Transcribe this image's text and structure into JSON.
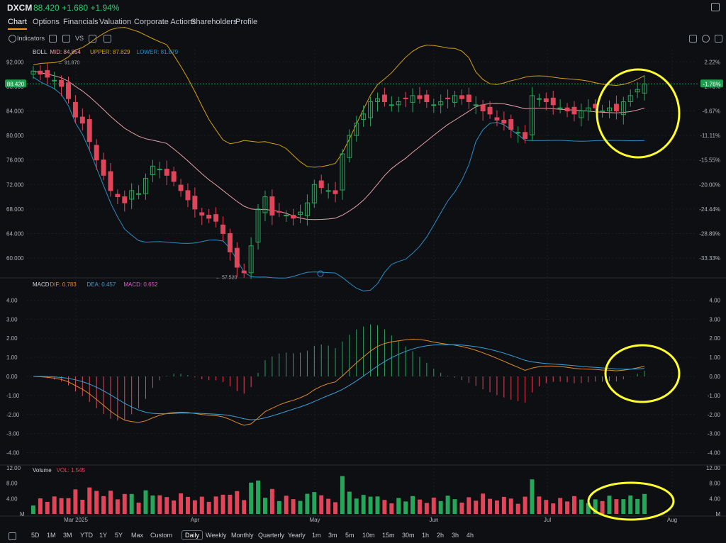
{
  "header": {
    "ticker": "DXCM",
    "price": "88.420",
    "change": "+1.680",
    "change_pct": "+1.94%"
  },
  "tabs": [
    "Chart",
    "Options",
    "Financials",
    "Valuation",
    "Corporate Actions",
    "Shareholders",
    "Profile"
  ],
  "toolbar": {
    "indicators_label": "Indicators"
  },
  "boll": {
    "label": "BOLL",
    "mid": "MID: 84.854",
    "upper": "UPPER: 87.829",
    "lower": "LOWER: 81.879"
  },
  "macd": {
    "label": "MACD",
    "dif": "DIF: 0.783",
    "dea": "DEA: 0.457",
    "macd": "MACD: 0.652"
  },
  "volume": {
    "label": "Volume",
    "vol": "VOL: 1.545"
  },
  "price_axis": {
    "left": [
      "92.000",
      "88.000",
      "84.000",
      "80.000",
      "76.000",
      "72.000",
      "68.000",
      "64.000",
      "60.000"
    ],
    "right": [
      "2.22%",
      "-1.76%",
      "-6.67%",
      "-11.11%",
      "-15.55%",
      "-20.00%",
      "-24.44%",
      "-28.89%",
      "-33.33%"
    ]
  },
  "price_tags": {
    "current": "88.420",
    "current_pct": "-1.76%",
    "high": "91.870",
    "low": "57.520"
  },
  "macd_axis": [
    "4.00",
    "3.00",
    "2.00",
    "1.00",
    "0.00",
    "-1.00",
    "-2.00",
    "-3.00",
    "-4.00"
  ],
  "vol_axis": [
    "12.00",
    "8.00",
    "4.00",
    "M"
  ],
  "x_axis": [
    "Mar 2025",
    "Apr",
    "May",
    "Jun",
    "Jul",
    "Aug"
  ],
  "bottom": {
    "ranges": [
      "5D",
      "1M",
      "3M",
      "YTD",
      "1Y",
      "5Y",
      "Max",
      "Custom"
    ],
    "periods": [
      "Daily",
      "Weekly",
      "Monthly",
      "Quarterly",
      "Yearly",
      "1m",
      "3m",
      "5m",
      "10m",
      "15m",
      "30m",
      "1h",
      "2h",
      "3h",
      "4h"
    ],
    "active": "Daily"
  },
  "colors": {
    "up": "#26a65b",
    "down": "#e0455a",
    "mid": "#e8a0a8",
    "upper": "#d4a017",
    "lower": "#2a8fc7",
    "dif": "#e08a2a",
    "dea": "#3aa0d8",
    "highlight": "#ffff2e"
  },
  "chart_data": {
    "type": "candlestick",
    "series": "DXCM daily",
    "ohlc_close": [
      90.5,
      90.0,
      89.5,
      89.0,
      88.0,
      86.0,
      83.0,
      82.0,
      79.0,
      76.0,
      73.5,
      71.0,
      70.0,
      69.0,
      71.0,
      70.5,
      73.0,
      75.0,
      74.5,
      73.5,
      72.5,
      71.0,
      69.5,
      68.0,
      67.0,
      66.5,
      66.0,
      64.0,
      61.0,
      58.5,
      57.6,
      62.0,
      68.0,
      70.0,
      67.0,
      67.5,
      67.0,
      66.5,
      67.5,
      69.0,
      72.0,
      71.5,
      71.0,
      70.5,
      77.0,
      80.0,
      82.0,
      83.5,
      85.5,
      86.0,
      85.5,
      85.0,
      85.5,
      86.0,
      86.5,
      86.0,
      85.5,
      85.0,
      85.5,
      86.0,
      86.5,
      86.0,
      85.5,
      85.0,
      84.0,
      83.5,
      82.5,
      82.0,
      81.0,
      80.5,
      79.5,
      86.5,
      86.0,
      85.5,
      85.0,
      84.5,
      84.0,
      83.5,
      84.0,
      84.5,
      84.5,
      84.0,
      84.5,
      84.0,
      85.5,
      86.5,
      87.5,
      88.4
    ],
    "boll_mid_last": 84.854,
    "boll_upper_last": 87.829,
    "boll_lower_last": 81.879,
    "macd_dif_last": 0.783,
    "macd_dea_last": 0.457,
    "macd_hist_last": 0.652,
    "volume_last": 1.545,
    "price_range": [
      57.0,
      94.0
    ],
    "macd_range": [
      -4.5,
      4.5
    ],
    "volume_range": [
      0,
      12
    ]
  }
}
